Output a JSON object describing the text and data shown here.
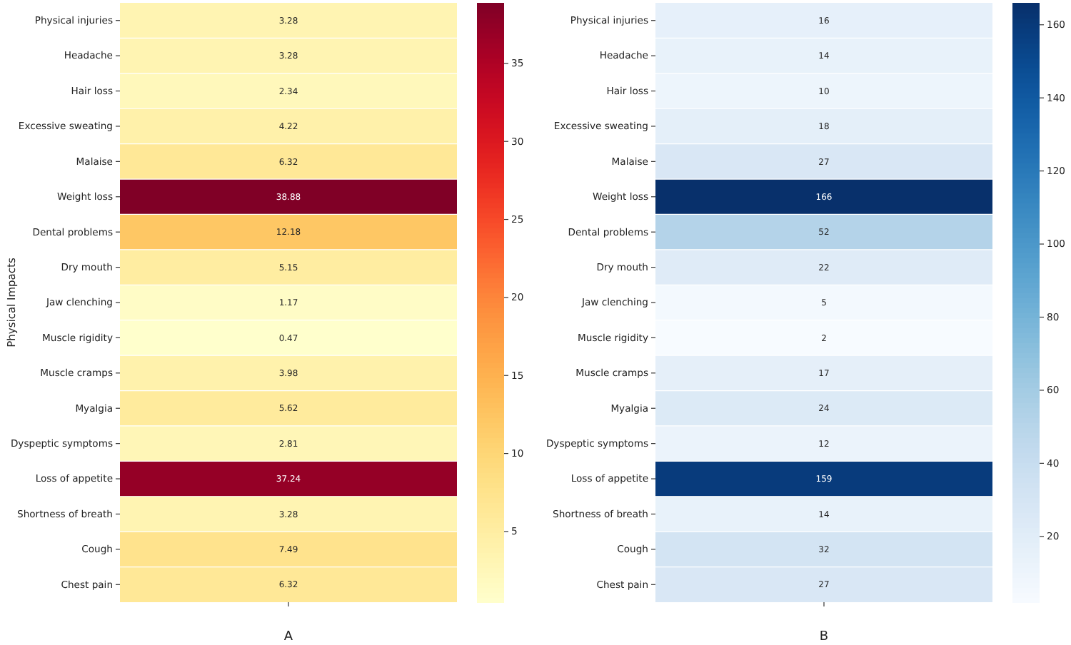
{
  "chart_data": [
    {
      "type": "heatmap",
      "ylabel": "Physical Impacts",
      "categories": [
        "A"
      ],
      "y_categories": [
        "Physical injuries",
        "Headache",
        "Hair loss",
        "Excessive sweating",
        "Malaise",
        "Weight loss",
        "Dental problems",
        "Dry mouth",
        "Jaw clenching",
        "Muscle rigidity",
        "Muscle cramps",
        "Myalgia",
        "Dyspeptic symptoms",
        "Loss of appetite",
        "Shortness of breath",
        "Cough",
        "Chest pain"
      ],
      "cells": [
        [
          3.28
        ],
        [
          3.28
        ],
        [
          2.34
        ],
        [
          4.22
        ],
        [
          6.32
        ],
        [
          38.88
        ],
        [
          12.18
        ],
        [
          5.15
        ],
        [
          1.17
        ],
        [
          0.47
        ],
        [
          3.98
        ],
        [
          5.62
        ],
        [
          2.81
        ],
        [
          37.24
        ],
        [
          3.28
        ],
        [
          7.49
        ],
        [
          6.32
        ]
      ],
      "cell_labels": [
        [
          "3.28"
        ],
        [
          "3.28"
        ],
        [
          "2.34"
        ],
        [
          "4.22"
        ],
        [
          "6.32"
        ],
        [
          "38.88"
        ],
        [
          "12.18"
        ],
        [
          "5.15"
        ],
        [
          "1.17"
        ],
        [
          "0.47"
        ],
        [
          "3.98"
        ],
        [
          "5.62"
        ],
        [
          "2.81"
        ],
        [
          "37.24"
        ],
        [
          "3.28"
        ],
        [
          "7.49"
        ],
        [
          "6.32"
        ]
      ],
      "clim": [
        0.47,
        38.88
      ],
      "cticks": [
        5,
        10,
        15,
        20,
        25,
        30,
        35
      ],
      "colors": [
        "#ffffcc",
        "#ffeda0",
        "#fed976",
        "#feb24c",
        "#fd8d3c",
        "#fc4e2a",
        "#e31a1c",
        "#bd0026",
        "#800026"
      ],
      "data_labels": true
    },
    {
      "type": "heatmap",
      "categories": [
        "B"
      ],
      "y_categories": [
        "Physical injuries",
        "Headache",
        "Hair loss",
        "Excessive sweating",
        "Malaise",
        "Weight loss",
        "Dental problems",
        "Dry mouth",
        "Jaw clenching",
        "Muscle rigidity",
        "Muscle cramps",
        "Myalgia",
        "Dyspeptic symptoms",
        "Loss of appetite",
        "Shortness of breath",
        "Cough",
        "Chest pain"
      ],
      "cells": [
        [
          16
        ],
        [
          14
        ],
        [
          10
        ],
        [
          18
        ],
        [
          27
        ],
        [
          166
        ],
        [
          52
        ],
        [
          22
        ],
        [
          5
        ],
        [
          2
        ],
        [
          17
        ],
        [
          24
        ],
        [
          12
        ],
        [
          159
        ],
        [
          14
        ],
        [
          32
        ],
        [
          27
        ]
      ],
      "cell_labels": [
        [
          "16"
        ],
        [
          "14"
        ],
        [
          "10"
        ],
        [
          "18"
        ],
        [
          "27"
        ],
        [
          "166"
        ],
        [
          "52"
        ],
        [
          "22"
        ],
        [
          "5"
        ],
        [
          "2"
        ],
        [
          "17"
        ],
        [
          "24"
        ],
        [
          "12"
        ],
        [
          "159"
        ],
        [
          "14"
        ],
        [
          "32"
        ],
        [
          "27"
        ]
      ],
      "clim": [
        2,
        166
      ],
      "cticks": [
        20,
        40,
        60,
        80,
        100,
        120,
        140,
        160
      ],
      "colors": [
        "#f7fbff",
        "#deebf7",
        "#c6dbef",
        "#9ecae1",
        "#6baed6",
        "#4292c6",
        "#2171b5",
        "#08519c",
        "#08306b"
      ],
      "data_labels": true
    }
  ]
}
